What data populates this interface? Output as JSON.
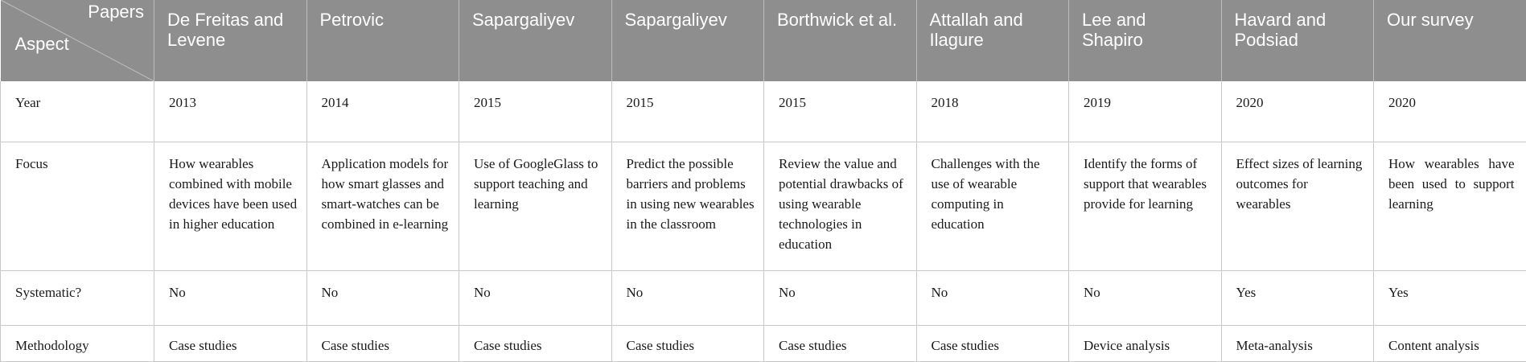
{
  "header": {
    "papers_label": "Papers",
    "aspect_label": "Aspect",
    "papers": [
      "De Freitas and Levene",
      "Petrovic",
      "Sapargaliyev",
      "Sapargaliyev",
      "Borthwick et al.",
      "Attallah and Ilagure",
      "Lee and Shapiro",
      "Havard and Podsiad",
      "Our survey"
    ]
  },
  "rows": [
    {
      "aspect": "Year",
      "cells": [
        "2013",
        "2014",
        "2015",
        "2015",
        "2015",
        "2018",
        "2019",
        "2020",
        "2020"
      ]
    },
    {
      "aspect": "Focus",
      "cells": [
        "How wearables combined with mobile devices have been used in higher education",
        "Application models for how smart glasses and smart-watches can be combined in e-learning",
        "Use of GoogleGlass to support teaching and learning",
        "Predict the possible barriers and problems in using new wearables in the classroom",
        "Review the value and potential drawbacks of using wearable technologies in education",
        "Challenges with the use of wearable computing in education",
        "Identify the forms of support that wearables provide for learning",
        "Effect sizes of learning outcomes for wearables",
        "How wearables have been used to support learning"
      ]
    },
    {
      "aspect": "Systematic?",
      "cells": [
        "No",
        "No",
        "No",
        "No",
        "No",
        "No",
        "No",
        "Yes",
        "Yes"
      ]
    },
    {
      "aspect": "Methodology",
      "cells": [
        "Case studies",
        "Case studies",
        "Case studies",
        "Case studies",
        "Case studies",
        "Case studies",
        "Device analysis",
        "Meta-analysis",
        "Content analysis"
      ]
    }
  ]
}
